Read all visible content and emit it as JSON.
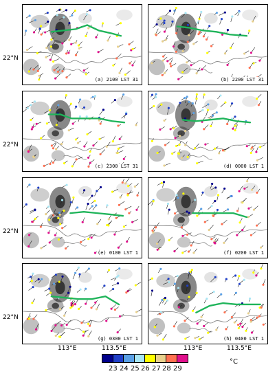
{
  "panels": [
    {
      "label": "(a) 2100 LST 31"
    },
    {
      "label": "(b) 2200 LST 31"
    },
    {
      "label": "(c) 2300 LST 31"
    },
    {
      "label": "(d) 0000 LST 1"
    },
    {
      "label": "(e) 0100 LST 1"
    },
    {
      "label": "(f) 0200 LST 1"
    },
    {
      "label": "(g) 0300 LST 1"
    },
    {
      "label": "(h) 0400 LST 1"
    }
  ],
  "axes": {
    "lat_label": "22°N",
    "lon_labels": [
      "113°E",
      "113.5°E"
    ]
  },
  "colorbar": {
    "ticks": [
      "23",
      "24",
      "25",
      "26",
      "27",
      "28",
      "29"
    ],
    "unit": "°C",
    "colors": [
      "#00008b",
      "#2040c8",
      "#5aa0e6",
      "#a8e6f5",
      "#ffff00",
      "#e8d08c",
      "#ff7050",
      "#e0108c"
    ]
  },
  "colors": {
    "front_line": "#1fb45a",
    "coast": "#7a7a7a"
  }
}
